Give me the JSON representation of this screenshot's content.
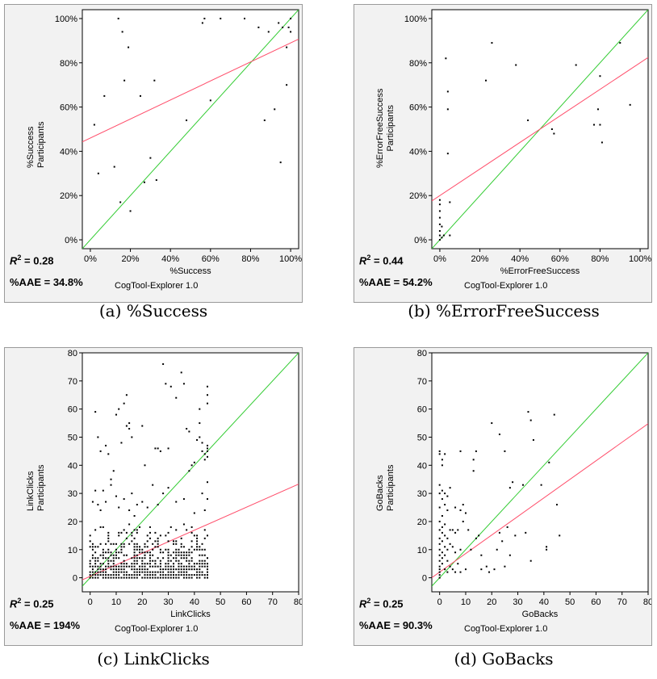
{
  "figure": {
    "captions": [
      "(a) %Success",
      "(b) %ErrorFreeSuccess",
      "(c) LinkClicks",
      "(d) GoBacks"
    ]
  },
  "chart_data": [
    {
      "id": "a",
      "type": "scatter",
      "xlabel": "%Success",
      "ylabel": [
        "%Success",
        "Participants"
      ],
      "r2_label": "R",
      "r2_sup": "2",
      "r2_value": " = 0.28",
      "aae": "%AAE = 34.8%",
      "tool": "CogTool-Explorer 1.0",
      "percent": true,
      "xlim": [
        -0.04,
        1.04
      ],
      "ylim": [
        -0.04,
        1.04
      ],
      "xticks": [
        0,
        0.2,
        0.4,
        0.6,
        0.8,
        1.0
      ],
      "yticks": [
        0,
        0.2,
        0.4,
        0.6,
        0.8,
        1.0
      ],
      "xtick_labels": [
        "0%",
        "20%",
        "40%",
        "60%",
        "80%",
        "100%"
      ],
      "ytick_labels": [
        "0%",
        "20%",
        "40%",
        "60%",
        "80%",
        "100%"
      ],
      "fit_line": {
        "intercept": 0.46,
        "slope": 0.43
      },
      "points": [
        [
          0.02,
          0.52
        ],
        [
          0.04,
          0.3
        ],
        [
          0.07,
          0.65
        ],
        [
          0.12,
          0.33
        ],
        [
          0.14,
          1.0
        ],
        [
          0.15,
          0.17
        ],
        [
          0.16,
          0.94
        ],
        [
          0.17,
          0.72
        ],
        [
          0.19,
          0.87
        ],
        [
          0.2,
          0.13
        ],
        [
          0.25,
          0.65
        ],
        [
          0.27,
          0.26
        ],
        [
          0.3,
          0.37
        ],
        [
          0.32,
          0.72
        ],
        [
          0.33,
          0.27
        ],
        [
          0.48,
          0.54
        ],
        [
          0.56,
          0.98
        ],
        [
          0.57,
          1.0
        ],
        [
          0.6,
          0.63
        ],
        [
          0.65,
          1.0
        ],
        [
          0.77,
          1.0
        ],
        [
          0.84,
          0.96
        ],
        [
          0.87,
          0.54
        ],
        [
          0.89,
          0.94
        ],
        [
          0.92,
          0.59
        ],
        [
          0.94,
          0.98
        ],
        [
          0.95,
          0.35
        ],
        [
          0.96,
          0.96
        ],
        [
          0.98,
          0.87
        ],
        [
          0.98,
          0.7
        ],
        [
          0.99,
          0.96
        ],
        [
          1.0,
          0.94
        ],
        [
          1.0,
          1.0
        ]
      ]
    },
    {
      "id": "b",
      "type": "scatter",
      "xlabel": "%ErrorFreeSuccess",
      "ylabel": [
        "%ErrorFreeSuccess",
        "Participants"
      ],
      "r2_label": "R",
      "r2_sup": "2",
      "r2_value": " = 0.44",
      "aae": "%AAE = 54.2%",
      "tool": "CogTool-Explorer 1.0",
      "percent": true,
      "xlim": [
        -0.04,
        1.04
      ],
      "ylim": [
        -0.04,
        1.04
      ],
      "xticks": [
        0,
        0.2,
        0.4,
        0.6,
        0.8,
        1.0
      ],
      "yticks": [
        0,
        0.2,
        0.4,
        0.6,
        0.8,
        1.0
      ],
      "xtick_labels": [
        "0%",
        "20%",
        "40%",
        "60%",
        "80%",
        "100%"
      ],
      "ytick_labels": [
        "0%",
        "20%",
        "40%",
        "60%",
        "80%",
        "100%"
      ],
      "fit_line": {
        "intercept": 0.2,
        "slope": 0.6
      },
      "points": [
        [
          0.0,
          0.0
        ],
        [
          0.0,
          0.02
        ],
        [
          0.0,
          0.04
        ],
        [
          0.0,
          0.07
        ],
        [
          0.0,
          0.1
        ],
        [
          0.0,
          0.13
        ],
        [
          0.0,
          0.16
        ],
        [
          0.0,
          0.18
        ],
        [
          0.01,
          0.01
        ],
        [
          0.01,
          0.06
        ],
        [
          0.02,
          0.02
        ],
        [
          0.03,
          0.82
        ],
        [
          0.04,
          0.67
        ],
        [
          0.04,
          0.59
        ],
        [
          0.04,
          0.39
        ],
        [
          0.05,
          0.02
        ],
        [
          0.05,
          0.17
        ],
        [
          0.23,
          0.72
        ],
        [
          0.26,
          0.89
        ],
        [
          0.38,
          0.79
        ],
        [
          0.44,
          0.54
        ],
        [
          0.56,
          0.5
        ],
        [
          0.57,
          0.48
        ],
        [
          0.68,
          0.79
        ],
        [
          0.77,
          0.52
        ],
        [
          0.79,
          0.59
        ],
        [
          0.8,
          0.74
        ],
        [
          0.8,
          0.52
        ],
        [
          0.81,
          0.44
        ],
        [
          0.9,
          0.89
        ],
        [
          0.95,
          0.61
        ]
      ]
    },
    {
      "id": "c",
      "type": "scatter",
      "xlabel": "LinkClicks",
      "ylabel": [
        "LinkClicks",
        "Participants"
      ],
      "r2_label": "R",
      "r2_sup": "2",
      "r2_value": " = 0.25",
      "aae": "%AAE = 194%",
      "tool": "CogTool-Explorer 1.0",
      "percent": false,
      "xlim": [
        -3,
        80
      ],
      "ylim": [
        -5,
        80
      ],
      "xticks": [
        0,
        10,
        20,
        30,
        40,
        50,
        60,
        70,
        80
      ],
      "yticks": [
        0,
        10,
        20,
        30,
        40,
        50,
        60,
        70,
        80
      ],
      "xtick_labels": [
        "0",
        "10",
        "20",
        "30",
        "40",
        "50",
        "60",
        "70",
        "80"
      ],
      "ytick_labels": [
        "0",
        "10",
        "20",
        "30",
        "40",
        "50",
        "60",
        "70",
        "80"
      ],
      "fit_line": {
        "intercept": 0.5,
        "slope": 0.41
      },
      "points": [
        [
          2,
          59
        ],
        [
          3,
          50
        ],
        [
          4,
          45
        ],
        [
          6,
          47
        ],
        [
          7,
          44
        ],
        [
          8,
          35
        ],
        [
          9,
          38
        ],
        [
          10,
          58
        ],
        [
          11,
          60
        ],
        [
          12,
          48
        ],
        [
          13,
          62
        ],
        [
          14,
          65
        ],
        [
          14,
          54
        ],
        [
          15,
          55
        ],
        [
          15,
          53
        ],
        [
          16,
          50
        ],
        [
          20,
          54
        ],
        [
          21,
          40
        ],
        [
          25,
          46
        ],
        [
          26,
          46
        ],
        [
          27,
          45
        ],
        [
          28,
          76
        ],
        [
          29,
          69
        ],
        [
          30,
          46
        ],
        [
          31,
          68
        ],
        [
          33,
          64
        ],
        [
          35,
          73
        ],
        [
          36,
          69
        ],
        [
          37,
          53
        ],
        [
          38,
          52
        ],
        [
          38,
          38
        ],
        [
          39,
          40
        ],
        [
          40,
          41
        ],
        [
          41,
          49
        ],
        [
          42,
          60
        ],
        [
          42,
          55
        ],
        [
          42,
          50
        ],
        [
          43,
          48
        ],
        [
          43,
          45
        ],
        [
          44,
          44
        ],
        [
          44,
          42
        ],
        [
          45,
          68
        ],
        [
          45,
          65
        ],
        [
          45,
          62
        ],
        [
          45,
          47
        ],
        [
          45,
          46
        ],
        [
          45,
          45
        ],
        [
          45,
          43
        ],
        [
          45,
          34
        ],
        [
          45,
          28
        ],
        [
          44,
          24
        ],
        [
          43,
          30
        ],
        [
          40,
          23
        ],
        [
          36,
          28
        ],
        [
          33,
          27
        ],
        [
          30,
          32
        ],
        [
          28,
          30
        ],
        [
          26,
          26
        ],
        [
          24,
          33
        ],
        [
          22,
          25
        ],
        [
          20,
          27
        ],
        [
          18,
          26
        ],
        [
          17,
          22
        ],
        [
          16,
          30
        ],
        [
          15,
          24
        ],
        [
          13,
          28
        ],
        [
          11,
          25
        ],
        [
          10,
          29
        ],
        [
          8,
          33
        ],
        [
          6,
          27
        ],
        [
          5,
          31
        ],
        [
          4,
          24
        ],
        [
          3,
          26
        ],
        [
          2,
          31
        ],
        [
          1,
          27
        ]
      ],
      "dense_cluster": {
        "x_max": 45,
        "y_max": 20
      }
    },
    {
      "id": "d",
      "type": "scatter",
      "xlabel": "GoBacks",
      "ylabel": [
        "GoBacks",
        "Participants"
      ],
      "r2_label": "R",
      "r2_sup": "2",
      "r2_value": " = 0.25",
      "aae": "%AAE = 90.3%",
      "tool": "CogTool-Explorer 1.0",
      "percent": false,
      "xlim": [
        -3,
        80
      ],
      "ylim": [
        -5,
        80
      ],
      "xticks": [
        0,
        10,
        20,
        30,
        40,
        50,
        60,
        70,
        80
      ],
      "yticks": [
        0,
        10,
        20,
        30,
        40,
        50,
        60,
        70,
        80
      ],
      "xtick_labels": [
        "0",
        "10",
        "20",
        "30",
        "40",
        "50",
        "60",
        "70",
        "80"
      ],
      "ytick_labels": [
        "0",
        "10",
        "20",
        "30",
        "40",
        "50",
        "60",
        "70",
        "80"
      ],
      "fit_line": {
        "intercept": 2.0,
        "slope": 0.66
      },
      "points": [
        [
          0,
          45
        ],
        [
          0,
          44
        ],
        [
          0,
          33
        ],
        [
          0,
          30
        ],
        [
          0,
          25
        ],
        [
          0,
          20
        ],
        [
          0,
          17
        ],
        [
          0,
          14
        ],
        [
          0,
          12
        ],
        [
          0,
          10
        ],
        [
          0,
          8
        ],
        [
          0,
          6
        ],
        [
          0,
          4
        ],
        [
          0,
          3
        ],
        [
          0,
          2
        ],
        [
          0,
          1
        ],
        [
          0,
          0
        ],
        [
          1,
          40
        ],
        [
          1,
          42
        ],
        [
          1,
          31
        ],
        [
          1,
          28
        ],
        [
          1,
          22
        ],
        [
          1,
          18
        ],
        [
          1,
          16
        ],
        [
          1,
          13
        ],
        [
          1,
          9
        ],
        [
          1,
          7
        ],
        [
          1,
          5
        ],
        [
          2,
          44
        ],
        [
          2,
          30
        ],
        [
          2,
          26
        ],
        [
          2,
          19
        ],
        [
          2,
          15
        ],
        [
          2,
          11
        ],
        [
          2,
          8
        ],
        [
          2,
          3
        ],
        [
          3,
          29
        ],
        [
          3,
          24
        ],
        [
          3,
          14
        ],
        [
          3,
          10
        ],
        [
          3,
          6
        ],
        [
          3,
          2
        ],
        [
          4,
          32
        ],
        [
          4,
          17
        ],
        [
          4,
          12
        ],
        [
          4,
          4
        ],
        [
          5,
          17
        ],
        [
          5,
          11
        ],
        [
          5,
          3
        ],
        [
          6,
          25
        ],
        [
          6,
          16
        ],
        [
          6,
          9
        ],
        [
          6,
          2
        ],
        [
          7,
          17
        ],
        [
          7,
          5
        ],
        [
          8,
          45
        ],
        [
          8,
          24
        ],
        [
          8,
          10
        ],
        [
          8,
          2
        ],
        [
          9,
          26
        ],
        [
          9,
          20
        ],
        [
          10,
          23
        ],
        [
          10,
          3
        ],
        [
          11,
          17
        ],
        [
          12,
          10
        ],
        [
          13,
          42
        ],
        [
          13,
          38
        ],
        [
          14,
          45
        ],
        [
          14,
          14
        ],
        [
          15,
          15
        ],
        [
          16,
          8
        ],
        [
          16,
          3
        ],
        [
          18,
          4
        ],
        [
          19,
          2
        ],
        [
          20,
          55
        ],
        [
          21,
          3
        ],
        [
          22,
          10
        ],
        [
          23,
          16
        ],
        [
          23,
          51
        ],
        [
          24,
          13
        ],
        [
          25,
          45
        ],
        [
          25,
          4
        ],
        [
          26,
          18
        ],
        [
          27,
          8
        ],
        [
          27,
          32
        ],
        [
          28,
          34
        ],
        [
          29,
          15
        ],
        [
          32,
          33
        ],
        [
          33,
          16
        ],
        [
          34,
          59
        ],
        [
          35,
          56
        ],
        [
          36,
          49
        ],
        [
          35,
          6
        ],
        [
          39,
          33
        ],
        [
          41,
          11
        ],
        [
          41,
          10
        ],
        [
          42,
          41
        ],
        [
          44,
          58
        ],
        [
          45,
          26
        ],
        [
          46,
          15
        ]
      ]
    }
  ]
}
